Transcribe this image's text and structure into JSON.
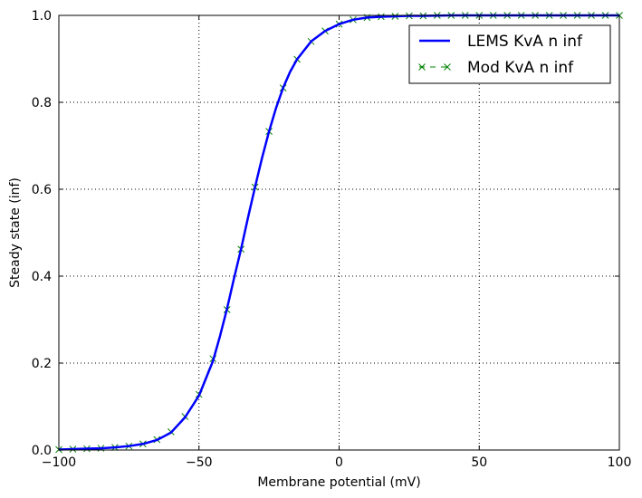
{
  "chart_data": {
    "type": "line",
    "xlabel": "Membrane potential (mV)",
    "ylabel": "Steady state (inf)",
    "xlim": [
      -100,
      100
    ],
    "ylim": [
      0.0,
      1.0
    ],
    "xticks": [
      -100,
      -50,
      0,
      50,
      100
    ],
    "xtick_labels": [
      "−100",
      "−50",
      "0",
      "50",
      "100"
    ],
    "yticks": [
      0.0,
      0.2,
      0.4,
      0.6,
      0.8,
      1.0
    ],
    "ytick_labels": [
      "0.0",
      "0.2",
      "0.4",
      "0.6",
      "0.8",
      "1.0"
    ],
    "grid": true,
    "legend_position": "top-right",
    "series": [
      {
        "name": "LEMS KvA n inf",
        "style": "solid-line",
        "color": "#0000ff",
        "x": [
          -100,
          -95,
          -90,
          -85,
          -80,
          -75,
          -70,
          -65,
          -60,
          -55,
          -50,
          -45,
          -42.5,
          -40,
          -37.5,
          -35,
          -32.5,
          -30,
          -27.5,
          -25,
          -22.5,
          -20,
          -17.5,
          -15,
          -10,
          -5,
          0,
          5,
          10,
          15,
          20,
          25,
          30,
          40,
          50,
          60,
          70,
          80,
          90,
          100
        ],
        "y": [
          0.001,
          0.002,
          0.003,
          0.004,
          0.006,
          0.009,
          0.014,
          0.023,
          0.04,
          0.075,
          0.125,
          0.205,
          0.262,
          0.325,
          0.395,
          0.462,
          0.535,
          0.605,
          0.672,
          0.733,
          0.787,
          0.833,
          0.87,
          0.899,
          0.94,
          0.964,
          0.98,
          0.99,
          0.995,
          0.997,
          0.998,
          0.999,
          0.999,
          1.0,
          1.0,
          1.0,
          1.0,
          1.0,
          1.0,
          1.0
        ]
      },
      {
        "name": "Mod KvA n inf",
        "style": "dashed-x-markers",
        "color": "#008000",
        "x": [
          -100,
          -95,
          -90,
          -85,
          -80,
          -75,
          -70,
          -65,
          -60,
          -55,
          -50,
          -45,
          -40,
          -35,
          -30,
          -25,
          -20,
          -15,
          -10,
          -5,
          0,
          5,
          10,
          15,
          20,
          25,
          30,
          35,
          40,
          45,
          50,
          55,
          60,
          65,
          70,
          75,
          80,
          85,
          90,
          95,
          100
        ],
        "y": [
          0.001,
          0.002,
          0.003,
          0.004,
          0.006,
          0.009,
          0.014,
          0.024,
          0.042,
          0.077,
          0.128,
          0.21,
          0.323,
          0.462,
          0.605,
          0.733,
          0.833,
          0.899,
          0.94,
          0.964,
          0.98,
          0.99,
          0.995,
          0.997,
          0.998,
          0.999,
          0.999,
          1.0,
          1.0,
          1.0,
          1.0,
          1.0,
          1.0,
          1.0,
          1.0,
          1.0,
          1.0,
          1.0,
          1.0,
          1.0,
          1.0
        ]
      }
    ]
  }
}
